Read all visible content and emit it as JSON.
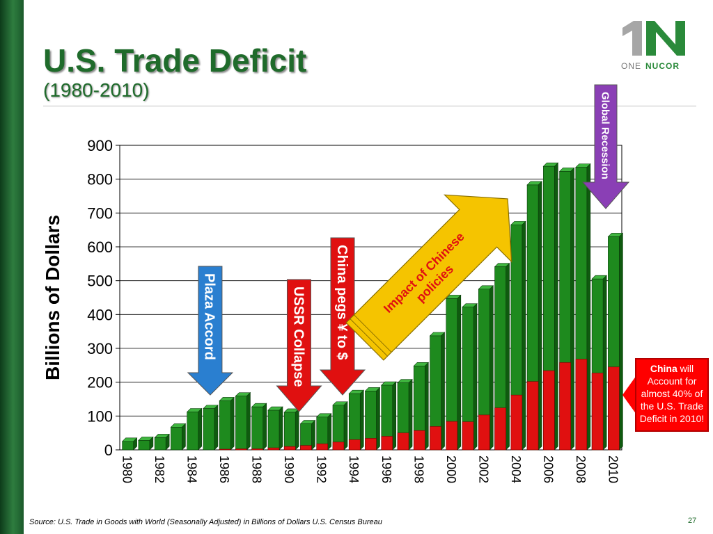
{
  "header": {
    "title": "U.S. Trade Deficit",
    "subtitle": "(1980-2010)"
  },
  "logo": {
    "part1": "ONE",
    "part2": "NUCOR"
  },
  "callout": {
    "bold": "China",
    "rest": "will Account for almost 40% of the U.S. Trade Deficit in 2010!"
  },
  "footer": {
    "source": "Source: U.S. Trade in Goods with World (Seasonally Adjusted) in Billions of Dollars  U.S. Census Bureau",
    "page_number": "27"
  },
  "chart_data": {
    "type": "bar",
    "stacked_overlay": true,
    "title": "",
    "xlabel": "",
    "ylabel": "Billions of Dollars",
    "ylim": [
      0,
      900
    ],
    "yticks": [
      0,
      100,
      200,
      300,
      400,
      500,
      600,
      700,
      800,
      900
    ],
    "categories": [
      "1980",
      "1981",
      "1982",
      "1983",
      "1984",
      "1985",
      "1986",
      "1987",
      "1988",
      "1989",
      "1990",
      "1991",
      "1992",
      "1993",
      "1994",
      "1995",
      "1996",
      "1997",
      "1998",
      "1999",
      "2000",
      "2001",
      "2002",
      "2003",
      "2004",
      "2005",
      "2006",
      "2007",
      "2008",
      "2009",
      "2010"
    ],
    "xtick_labels": [
      "1980",
      "1982",
      "1984",
      "1986",
      "1988",
      "1990",
      "1992",
      "1994",
      "1996",
      "1998",
      "2000",
      "2002",
      "2004",
      "2006",
      "2008",
      "2010"
    ],
    "series": [
      {
        "color": "#1e8a1e",
        "values": [
          25,
          28,
          36,
          67,
          112,
          122,
          145,
          159,
          127,
          117,
          111,
          77,
          97,
          132,
          166,
          174,
          191,
          198,
          248,
          337,
          447,
          422,
          475,
          541,
          665,
          783,
          838,
          823,
          835,
          505,
          630
        ]
      },
      {
        "color": "#e01010",
        "values": [
          0,
          0,
          0,
          0,
          0,
          0,
          2,
          3,
          3,
          6,
          10,
          13,
          18,
          23,
          30,
          34,
          40,
          50,
          57,
          69,
          84,
          83,
          103,
          124,
          162,
          202,
          234,
          258,
          268,
          227,
          245
        ]
      }
    ],
    "annotations": [
      {
        "text": "Plaza Accord",
        "year": "1985",
        "color": "#2a7fd0"
      },
      {
        "text": "USSR Collapse",
        "year": "1991",
        "color": "#e01010"
      },
      {
        "text": "China pegs ¥ to $",
        "year": "1993",
        "color": "#e01010"
      },
      {
        "text": "Impact of Chinese policies",
        "color": "#f5c400"
      },
      {
        "text": "Global Recession",
        "year": "2009",
        "color": "#8a3fb5"
      }
    ],
    "grid": true
  }
}
